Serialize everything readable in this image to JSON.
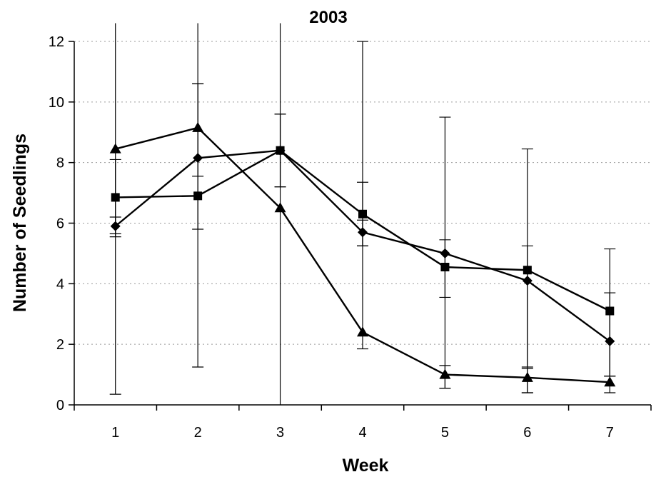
{
  "chart_data": {
    "type": "line",
    "title": "2003",
    "xlabel": "Week",
    "ylabel": "Number of Seedlings",
    "x": [
      1,
      2,
      3,
      4,
      5,
      6,
      7
    ],
    "x_tick_labels": [
      "1",
      "2",
      "3",
      "4",
      "5",
      "6",
      "7"
    ],
    "y_tick_labels": [
      "0",
      "2",
      "4",
      "6",
      "8",
      "10",
      "12"
    ],
    "ylim": [
      0,
      12
    ],
    "grid": "horizontal dotted",
    "legend": "none",
    "series": [
      {
        "marker": "diamond",
        "values": [
          5.9,
          8.15,
          8.4,
          5.7,
          5.0,
          4.1,
          2.1
        ],
        "error_bars": [
          [
            5.65,
            6.2
          ],
          [
            5.8,
            10.6
          ],
          [
            7.2,
            9.6
          ],
          [
            5.25,
            6.1
          ],
          [
            3.55,
            5.45
          ],
          [
            1.25,
            5.25
          ],
          [
            0.95,
            3.7
          ]
        ]
      },
      {
        "marker": "square",
        "values": [
          6.85,
          6.9,
          8.4,
          6.3,
          4.55,
          4.45,
          3.1
        ],
        "error_bars": [
          [
            5.55,
            8.1
          ],
          [
            1.25,
            12.6
          ],
          [
            7.2,
            9.6
          ],
          [
            5.25,
            7.35
          ],
          [
            0.55,
            9.5
          ],
          [
            0.4,
            8.45
          ],
          [
            0.95,
            5.15
          ]
        ]
      },
      {
        "marker": "triangle",
        "values": [
          8.45,
          9.15,
          6.5,
          2.4,
          1.0,
          0.9,
          0.75
        ],
        "error_bars": [
          [
            0.35,
            12.6
          ],
          [
            7.55,
            10.6
          ],
          [
            0.0,
            12.6
          ],
          [
            1.85,
            12.0
          ],
          [
            0.55,
            1.3
          ],
          [
            0.4,
            1.2
          ],
          [
            0.4,
            0.95
          ]
        ]
      }
    ],
    "colors": {
      "line": "#000000",
      "grid": "#9a9a9a",
      "background": "#ffffff"
    }
  }
}
